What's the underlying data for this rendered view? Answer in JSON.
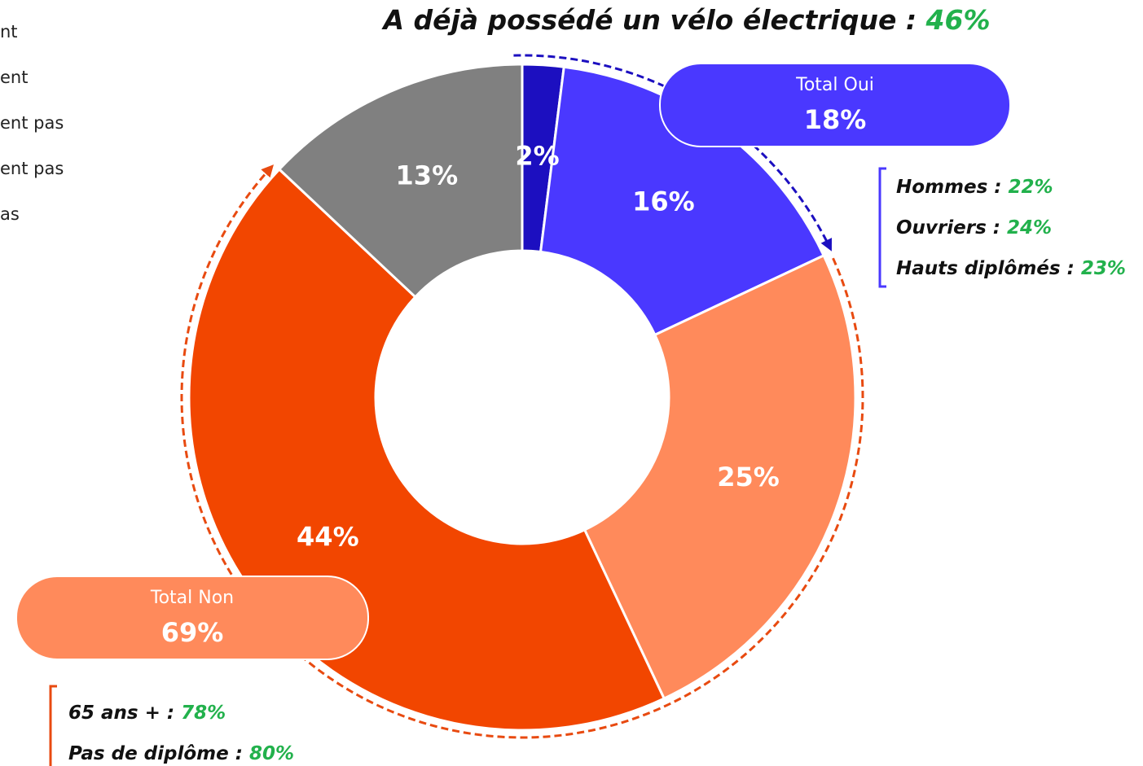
{
  "chart_data": {
    "type": "donut",
    "title": "A déjà possédé un vélo électrique :",
    "title_value": 46,
    "title_value_label": "46%",
    "categories": [
      "nt",
      "ent",
      "ent pas",
      "ent pas",
      "as"
    ],
    "values": [
      2,
      16,
      25,
      44,
      13
    ],
    "value_labels": [
      "2%",
      "16%",
      "25%",
      "44%",
      "13%"
    ],
    "colors": [
      "#1c0fc0",
      "#4a38ff",
      "#ff8a5b",
      "#f24600",
      "#808080"
    ],
    "totals": [
      {
        "label": "Total Oui",
        "value": 18,
        "value_label": "18%",
        "color": "#4a38ff",
        "details": [
          {
            "label": "Hommes :",
            "value": 22,
            "value_label": "22%"
          },
          {
            "label": "Ouvriers :",
            "value": 24,
            "value_label": "24%"
          },
          {
            "label": "Hauts diplômés :",
            "value": 23,
            "value_label": "23%"
          }
        ]
      },
      {
        "label": "Total Non",
        "value": 69,
        "value_label": "69%",
        "color": "#ff8a5b",
        "details": [
          {
            "label": "65 ans + :",
            "value": 78,
            "value_label": "78%"
          },
          {
            "label": "Pas de diplôme :",
            "value": 80,
            "value_label": "80%"
          }
        ]
      }
    ]
  }
}
